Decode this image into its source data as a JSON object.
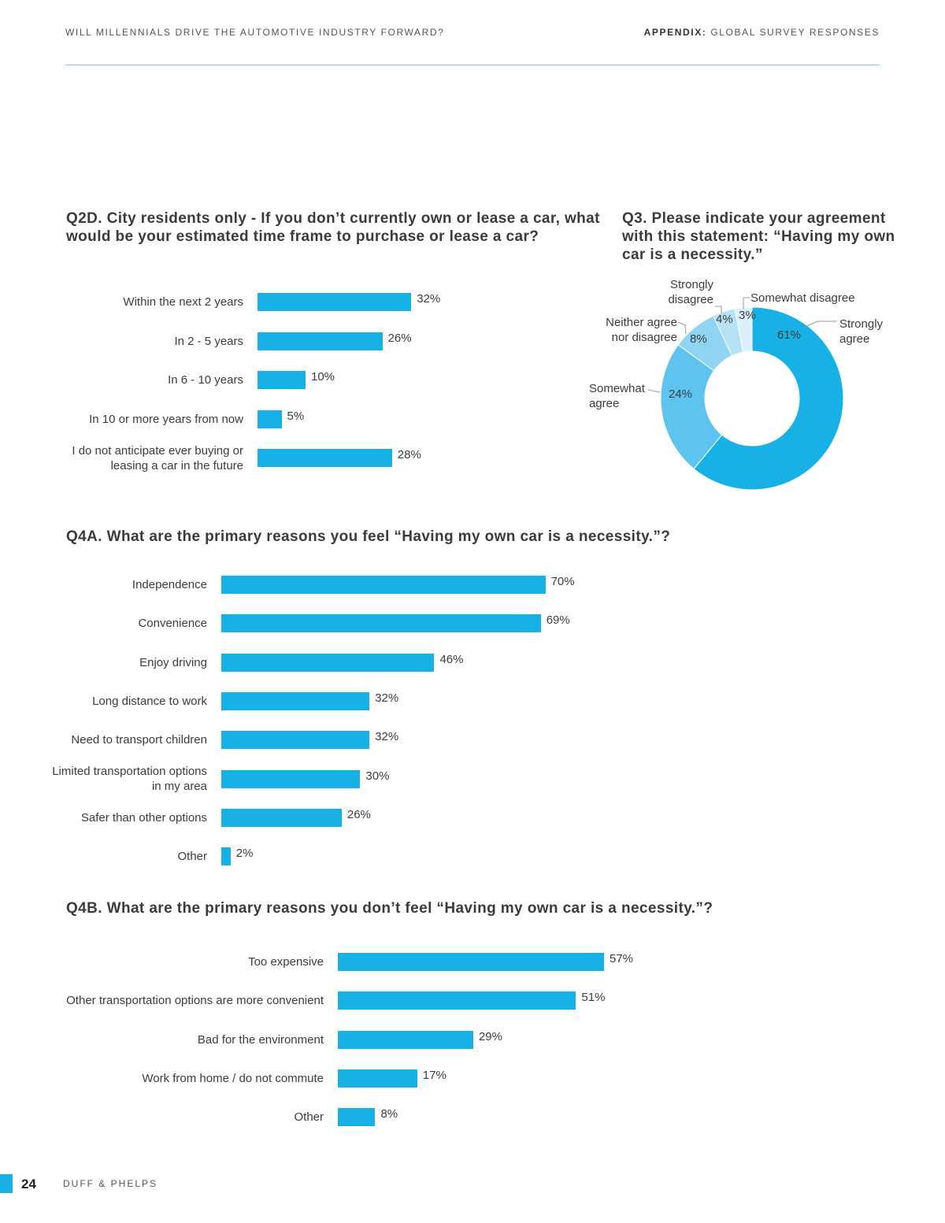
{
  "header": {
    "left": "WILL MILLENNIALS DRIVE THE AUTOMOTIVE INDUSTRY FORWARD?",
    "right_bold": "APPENDIX:",
    "right_rest": " GLOBAL SURVEY RESPONSES"
  },
  "footer": {
    "page_number": "24",
    "brand": "DUFF & PHELPS"
  },
  "colors": {
    "bar": "#17b1e6",
    "rule": "#7fc6de"
  },
  "q2d": {
    "title": "Q2D. City residents only - If you don’t currently own or lease a car, what would be your estimated time frame to purchase or lease a car?"
  },
  "q3": {
    "title": "Q3. Please indicate your agreement with this statement:  “Having my own car is a necessity.”"
  },
  "q4a": {
    "title": "Q4A. What are the primary reasons you feel “Having my own car is a necessity.”?"
  },
  "q4b": {
    "title": "Q4B. What are the primary reasons you don’t feel “Having my own car is a necessity.”?"
  },
  "chart_data": [
    {
      "id": "q2d",
      "type": "bar",
      "orientation": "horizontal",
      "categories": [
        "Within the next 2 years",
        "In 2 - 5 years",
        "In 6 - 10 years",
        "In 10 or more years from now",
        "I do not anticipate ever buying or leasing a car in the future"
      ],
      "values": [
        32,
        26,
        10,
        5,
        28
      ],
      "value_labels": [
        "32%",
        "26%",
        "10%",
        "5%",
        "28%"
      ],
      "unit": "%"
    },
    {
      "id": "q3",
      "type": "pie",
      "donut": true,
      "categories": [
        "Strongly agree",
        "Somewhat agree",
        "Neither agree nor disagree",
        "Strongly disagree",
        "Somewhat disagree"
      ],
      "values": [
        61,
        24,
        8,
        4,
        3
      ],
      "value_labels": [
        "61%",
        "24%",
        "8%",
        "4%",
        "3%"
      ],
      "colors": [
        "#17b1e6",
        "#5ec4ef",
        "#8fd4f3",
        "#b5e2f7",
        "#dbf0fb"
      ],
      "unit": "%"
    },
    {
      "id": "q4a",
      "type": "bar",
      "orientation": "horizontal",
      "categories": [
        "Independence",
        "Convenience",
        "Enjoy driving",
        "Long distance to work",
        "Need to transport children",
        "Limited transportation options in my area",
        "Safer than other options",
        "Other"
      ],
      "values": [
        70,
        69,
        46,
        32,
        32,
        30,
        26,
        2
      ],
      "value_labels": [
        "70%",
        "69%",
        "46%",
        "32%",
        "32%",
        "30%",
        "26%",
        "2%"
      ],
      "unit": "%"
    },
    {
      "id": "q4b",
      "type": "bar",
      "orientation": "horizontal",
      "categories": [
        "Too expensive",
        "Other transportation options are more convenient",
        "Bad for the environment",
        "Work from home / do not commute",
        "Other"
      ],
      "values": [
        57,
        51,
        29,
        17,
        8
      ],
      "value_labels": [
        "57%",
        "51%",
        "29%",
        "17%",
        "8%"
      ],
      "unit": "%"
    }
  ]
}
